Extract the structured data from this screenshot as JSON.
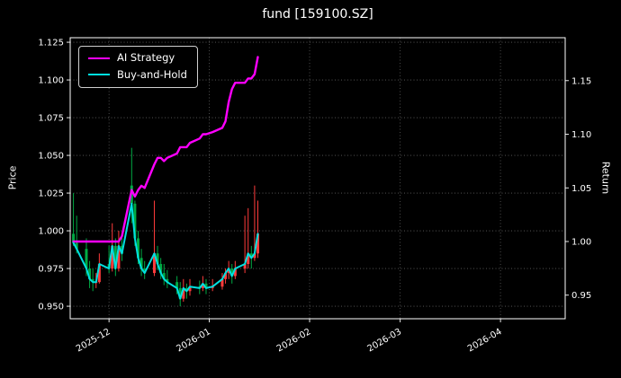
{
  "title": "fund [159100.SZ]",
  "colors": {
    "background": "#000000",
    "text": "#ffffff",
    "axis": "#ffffff",
    "grid": "#5f5f5f",
    "ai_strategy": "#ff00ff",
    "buy_and_hold": "#00e0e0",
    "candle_up": "#ff3b3b",
    "candle_down": "#00aa44"
  },
  "legend": {
    "position": "upper left",
    "items": [
      "AI Strategy",
      "Buy-and-Hold"
    ]
  },
  "chart_data": {
    "type": "line",
    "title": "fund [159100.SZ]",
    "xlabel": "",
    "ylabel_left": "Price",
    "ylabel_right": "Return",
    "grid": "dotted",
    "left_ylim": [
      0.9417,
      1.128
    ],
    "right_ylim": [
      0.928,
      1.19
    ],
    "left_ticks": [
      0.95,
      0.975,
      1.0,
      1.025,
      1.05,
      1.075,
      1.1,
      1.125
    ],
    "right_ticks": [
      0.95,
      1.0,
      1.05,
      1.1,
      1.15
    ],
    "x_domain": [
      "2025-11-19",
      "2026-04-21"
    ],
    "x_tick_dates": [
      "2025-12-01",
      "2026-01-01",
      "2026-02-01",
      "2026-03-01",
      "2026-04-01"
    ],
    "x_tick_labels": [
      "2025-12",
      "2026-01",
      "2026-02",
      "2026-03",
      "2026-04"
    ],
    "dates": [
      "2025-11-20",
      "2025-11-21",
      "2025-11-24",
      "2025-11-25",
      "2025-11-26",
      "2025-11-27",
      "2025-11-28",
      "2025-12-01",
      "2025-12-02",
      "2025-12-03",
      "2025-12-04",
      "2025-12-05",
      "2025-12-08",
      "2025-12-09",
      "2025-12-10",
      "2025-12-11",
      "2025-12-12",
      "2025-12-15",
      "2025-12-16",
      "2025-12-17",
      "2025-12-18",
      "2025-12-19",
      "2025-12-22",
      "2025-12-23",
      "2025-12-24",
      "2025-12-25",
      "2025-12-26",
      "2025-12-29",
      "2025-12-30",
      "2025-12-31",
      "2026-01-02",
      "2026-01-05",
      "2026-01-06",
      "2026-01-07",
      "2026-01-08",
      "2026-01-09",
      "2026-01-12",
      "2026-01-13",
      "2026-01-14",
      "2026-01-15",
      "2026-01-16"
    ],
    "series": [
      {
        "name": "AI Strategy",
        "axis": "right",
        "color": "#ff00ff",
        "values": [
          1.0,
          1.0,
          1.0,
          1.0,
          1.0,
          1.0,
          1.0,
          1.0,
          1.0,
          1.0,
          1.0,
          1.005,
          1.048,
          1.042,
          1.048,
          1.052,
          1.05,
          1.072,
          1.078,
          1.078,
          1.075,
          1.078,
          1.082,
          1.088,
          1.088,
          1.088,
          1.092,
          1.096,
          1.1,
          1.1,
          1.102,
          1.106,
          1.112,
          1.13,
          1.142,
          1.148,
          1.148,
          1.152,
          1.152,
          1.156,
          1.172
        ]
      },
      {
        "name": "Buy-and-Hold",
        "axis": "left",
        "color": "#00e0e0",
        "values": [
          0.992,
          0.988,
          0.975,
          0.968,
          0.966,
          0.966,
          0.978,
          0.975,
          0.99,
          0.975,
          0.99,
          0.985,
          1.018,
          0.995,
          0.982,
          0.975,
          0.972,
          0.985,
          0.978,
          0.972,
          0.968,
          0.966,
          0.962,
          0.955,
          0.962,
          0.96,
          0.963,
          0.962,
          0.965,
          0.962,
          0.963,
          0.968,
          0.972,
          0.975,
          0.97,
          0.975,
          0.978,
          0.985,
          0.982,
          0.985,
          0.998
        ]
      }
    ],
    "candles_ohlc": [
      [
        0.998,
        1.025,
        0.99,
        0.992
      ],
      [
        0.992,
        1.01,
        0.985,
        0.988
      ],
      [
        0.988,
        0.995,
        0.97,
        0.975
      ],
      [
        0.975,
        0.98,
        0.962,
        0.968
      ],
      [
        0.968,
        0.975,
        0.96,
        0.966
      ],
      [
        0.966,
        0.972,
        0.962,
        0.966
      ],
      [
        0.966,
        0.985,
        0.965,
        0.978
      ],
      [
        0.978,
        0.99,
        0.972,
        0.975
      ],
      [
        0.975,
        1.005,
        0.973,
        0.99
      ],
      [
        0.99,
        0.995,
        0.97,
        0.975
      ],
      [
        0.975,
        1.0,
        0.973,
        0.99
      ],
      [
        0.99,
        0.998,
        0.98,
        0.985
      ],
      [
        1.03,
        1.055,
        1.005,
        1.018
      ],
      [
        1.018,
        1.02,
        0.99,
        0.995
      ],
      [
        0.995,
        1.0,
        0.978,
        0.982
      ],
      [
        0.982,
        0.988,
        0.97,
        0.975
      ],
      [
        0.975,
        0.98,
        0.968,
        0.972
      ],
      [
        0.972,
        1.02,
        0.97,
        0.985
      ],
      [
        0.985,
        0.99,
        0.974,
        0.978
      ],
      [
        0.978,
        0.982,
        0.968,
        0.972
      ],
      [
        0.972,
        0.978,
        0.964,
        0.968
      ],
      [
        0.968,
        0.974,
        0.962,
        0.966
      ],
      [
        0.966,
        0.97,
        0.958,
        0.962
      ],
      [
        0.962,
        0.966,
        0.95,
        0.955
      ],
      [
        0.955,
        0.968,
        0.953,
        0.962
      ],
      [
        0.962,
        0.965,
        0.955,
        0.96
      ],
      [
        0.96,
        0.968,
        0.957,
        0.963
      ],
      [
        0.963,
        0.967,
        0.958,
        0.962
      ],
      [
        0.962,
        0.97,
        0.96,
        0.965
      ],
      [
        0.965,
        0.968,
        0.958,
        0.962
      ],
      [
        0.962,
        0.968,
        0.96,
        0.963
      ],
      [
        0.963,
        0.972,
        0.961,
        0.968
      ],
      [
        0.968,
        0.975,
        0.965,
        0.972
      ],
      [
        0.972,
        0.98,
        0.968,
        0.975
      ],
      [
        0.975,
        0.978,
        0.965,
        0.97
      ],
      [
        0.97,
        0.98,
        0.968,
        0.975
      ],
      [
        0.975,
        1.01,
        0.972,
        0.978
      ],
      [
        0.978,
        1.015,
        0.975,
        0.985
      ],
      [
        0.985,
        0.99,
        0.975,
        0.982
      ],
      [
        0.982,
        1.03,
        0.98,
        0.985
      ],
      [
        0.985,
        1.02,
        0.982,
        0.998
      ]
    ]
  }
}
